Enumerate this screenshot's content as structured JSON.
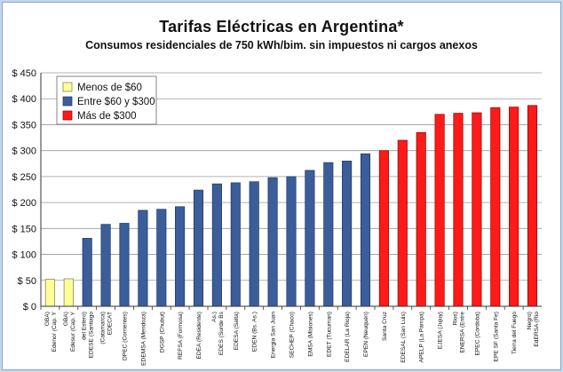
{
  "chart_data": {
    "type": "bar",
    "title": "Tarifas Eléctricas en  Argentina*",
    "subtitle": "Consumos residenciales de 750 kWh/bim. sin impuestos ni cargos anexos",
    "xlabel": "",
    "ylabel": "",
    "ylim": [
      0,
      450
    ],
    "ytick_step": 50,
    "ytick_prefix": "$ ",
    "grid": true,
    "legend_position": "top-left",
    "legend": [
      {
        "label": "Menos de $60",
        "color": "#ffff99"
      },
      {
        "label": "Entre $60 y $300",
        "color": "#3b5e9a"
      },
      {
        "label": "Más de $300",
        "color": "#ff1a1a"
      }
    ],
    "categories": [
      "Edenor (Cap. Y GBA)",
      "Edesur (Cap. Y GBA)",
      "EDESE (Santiago del Estero)",
      "EDECAT (Catamarca)",
      "DPEC (Corrientes)",
      "EDEMSA (Mendoza)",
      "DGSP (Chubut)",
      "REFSA (Formosa)",
      "EDEA (Residente)",
      "EDES (Surde Bs As.)",
      "EDESA (Salta)",
      "EDEN (Bs. As.)",
      "Energia San Juan",
      "SECHEP (Chaco)",
      "EMSA (Misiones)",
      "EDET (Tucuman)",
      "EDELAR (La Rioja)",
      "EPEN (Neuquén)",
      "Santa Cruz",
      "EDESAL (San Luis)",
      "APELP (La Pampa)",
      "EJESA (Jujuy)",
      "ENERSA (Entre Rios)",
      "EPEC (Córdoba)",
      "EPE SF (Santa Fe)",
      "Tierra del Fuego",
      "EdERSA (Rio Negro)"
    ],
    "values": [
      52,
      53,
      131,
      158,
      160,
      185,
      187,
      192,
      224,
      236,
      238,
      240,
      248,
      250,
      262,
      277,
      280,
      294,
      300,
      320,
      335,
      370,
      372,
      373,
      383,
      384,
      387
    ],
    "groups": [
      0,
      0,
      1,
      1,
      1,
      1,
      1,
      1,
      1,
      1,
      1,
      1,
      1,
      1,
      1,
      1,
      1,
      1,
      2,
      2,
      2,
      2,
      2,
      2,
      2,
      2,
      2
    ]
  }
}
